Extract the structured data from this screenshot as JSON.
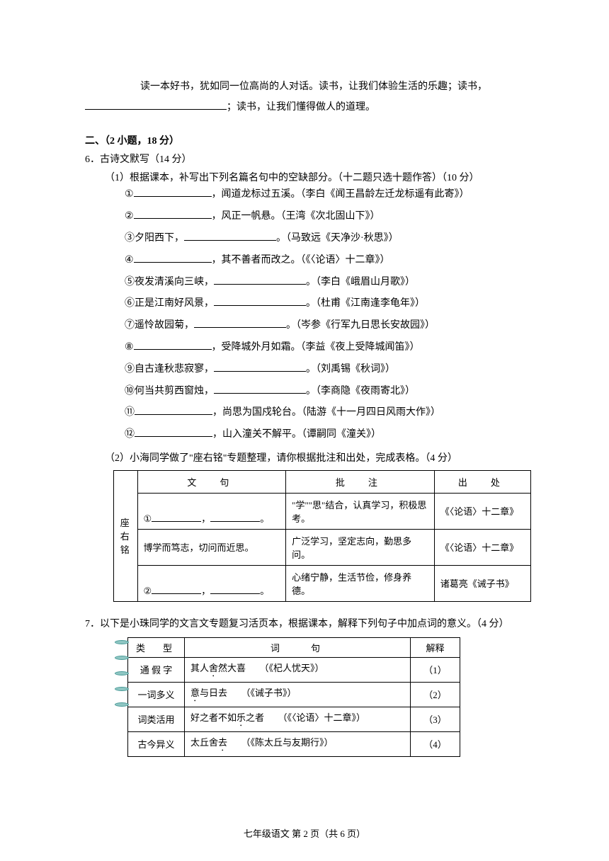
{
  "intro": {
    "line1": "读一本好书，犹如同一位高尚的人对话。读书，让我们体验生活的乐趣；读书，",
    "line2_suffix": "；读书，让我们懂得做人的道理。"
  },
  "section2": {
    "heading": "二、（2 小题，18 分）",
    "q6": {
      "head": "6．古诗文默写（14 分）",
      "part1_head": "（1）根据课本，补写出下列名篇名句中的空缺部分。（十二题只选十题作答）（10 分）",
      "items": [
        {
          "n": "①",
          "pre": "",
          "suf": "，闻道龙标过五溪。（李白《闻王昌龄左迁龙标遥有此寄》）"
        },
        {
          "n": "②",
          "pre": "",
          "suf": "，风正一帆悬。（王湾《次北固山下》）"
        },
        {
          "n": "③",
          "pre": "夕阳西下，",
          "suf": "。（马致远《天净沙·秋思》）"
        },
        {
          "n": "④",
          "pre": "",
          "suf": "，其不善者而改之。（《〈论语〉十二章》）"
        },
        {
          "n": "⑤",
          "pre": "夜发清溪向三峡，",
          "suf": "。（李白《峨眉山月歌》）"
        },
        {
          "n": "⑥",
          "pre": "正是江南好风景，",
          "suf": "。（杜甫《江南逢李龟年》）"
        },
        {
          "n": "⑦",
          "pre": "遥怜故园菊，",
          "suf": "。（岑参《行军九日思长安故园》）"
        },
        {
          "n": "⑧",
          "pre": "",
          "suf": "，受降城外月如霜。（李益《夜上受降城闻笛》）"
        },
        {
          "n": "⑨",
          "pre": "自古逢秋悲寂寥，",
          "suf": "。（刘禹锡《秋词》）"
        },
        {
          "n": "⑩",
          "pre": "何当共剪西窗烛，",
          "suf": "。（李商隐《夜雨寄北》）"
        },
        {
          "n": "⑪",
          "pre": "",
          "suf": "，尚思为国戍轮台。（陆游《十一月四日风雨大作》）"
        },
        {
          "n": "⑫",
          "pre": "",
          "suf": "，山入潼关不解平。（谭嗣同《潼关》）"
        }
      ],
      "part2_head": "（2）小海同学做了\"座右铭\"专题整理，请你根据批注和出处，完成表格。（4 分）",
      "table1": {
        "headers": [
          "文　句",
          "批　注",
          "出　处"
        ],
        "side_label": "座右铭",
        "rows": [
          {
            "wen": "①",
            "wen_suffix": "，",
            "wen_suffix2": "。",
            "note": "\"学\"\"思\"结合，认真学习，积极思考。",
            "src": "《〈论语〉十二章》"
          },
          {
            "wen": "博学而笃志，切问而近思。",
            "note": "广泛学习，坚定志向，勤思多问。",
            "src": "《〈论语〉十二章》"
          },
          {
            "wen": "②",
            "wen_suffix": "，",
            "wen_suffix2": "。",
            "note": "心绪宁静，生活节俭，修身养德。",
            "src": "诸葛亮《诫子书》"
          }
        ]
      }
    },
    "q7": {
      "head": "7．以下是小珠同学的文言文专题复习活页本，根据课本，解释下列句子中加点词的意义。（4 分）",
      "table2": {
        "headers": [
          "类　型",
          "词　　句",
          "解释"
        ],
        "rows": [
          {
            "type": "通 假 字",
            "sent_pre": "其人",
            "sent_em": "舍",
            "sent_post": "然大喜",
            "src": "（《杞人忧天》）",
            "num": "（1）"
          },
          {
            "type": "一词多义",
            "sent_pre": "",
            "sent_em": "意",
            "sent_post": "与日去",
            "src": "（《诫子书》）",
            "num": "（2）"
          },
          {
            "type": "词类活用",
            "sent_pre": "好之者不如",
            "sent_em": "乐",
            "sent_post": "之者",
            "src": "（《〈论语〉十二章》）",
            "num": "（3）"
          },
          {
            "type": "古今异义",
            "sent_pre": "太丘舍",
            "sent_em": "去",
            "sent_post": "",
            "src": "（《陈太丘与友期行》）",
            "num": "（4）"
          }
        ]
      }
    }
  },
  "footer": "七年级语文 第 2 页（共 6 页）"
}
